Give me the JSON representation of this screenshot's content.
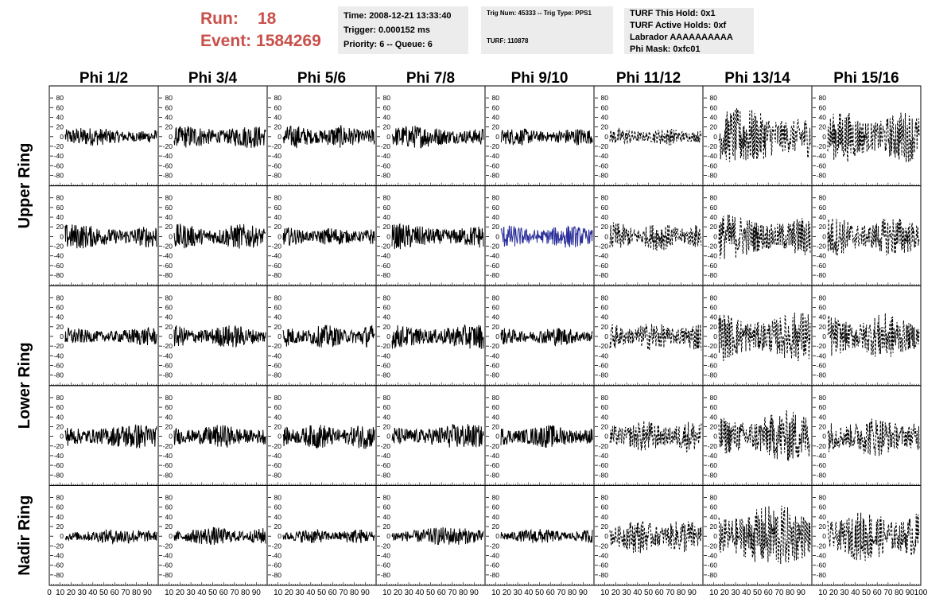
{
  "header": {
    "run_label": "Run:",
    "run_value": "18",
    "event_label": "Event:",
    "event_value": "1584269"
  },
  "info_time": {
    "time": "Time: 2008-12-21 13:33:40",
    "trigger": "Trigger: 0.000152 ms",
    "priority": "Priority: 6 -- Queue: 6"
  },
  "info_trig": {
    "trig": "Trig Num: 45333 -- Trig Type: PPS1",
    "turf": "TURF: 110878"
  },
  "info_turf": {
    "hold": "TURF This Hold: 0x1",
    "active": "TURF Active Holds: 0xf",
    "labrador": "Labrador AAAAAAAAAA",
    "phimask": "Phi Mask: 0xfc01"
  },
  "chart_data": {
    "type": "line",
    "columns": [
      "Phi 1/2",
      "Phi 3/4",
      "Phi 5/6",
      "Phi 7/8",
      "Phi 9/10",
      "Phi 11/12",
      "Phi 13/14",
      "Phi 15/16"
    ],
    "row_groups": [
      {
        "label": "Upper Ring",
        "rows": [
          0,
          1
        ]
      },
      {
        "label": "Lower Ring",
        "rows": [
          2,
          3
        ]
      },
      {
        "label": "Nadir Ring",
        "rows": [
          4
        ]
      }
    ],
    "xlim": [
      0,
      100
    ],
    "ylim": [
      -95,
      95
    ],
    "y_ticks": [
      -80,
      -60,
      -40,
      -20,
      0,
      20,
      40,
      60,
      80
    ],
    "x_ticks": [
      0,
      10,
      20,
      30,
      40,
      50,
      60,
      70,
      80,
      90,
      100
    ],
    "amplitudes": [
      [
        16,
        20,
        20,
        20,
        15,
        15,
        50,
        45
      ],
      [
        22,
        22,
        16,
        22,
        20,
        25,
        40,
        35
      ],
      [
        16,
        20,
        20,
        22,
        16,
        25,
        45,
        40
      ],
      [
        22,
        20,
        22,
        22,
        20,
        28,
        45,
        35
      ],
      [
        13,
        16,
        13,
        16,
        13,
        30,
        55,
        45
      ]
    ],
    "dashed_columns": [
      5,
      6,
      7
    ],
    "triggered_cell": [
      1,
      4
    ],
    "colors": {
      "trace": "#000000",
      "triggered_trace": "#2b2f9a",
      "run_text": "#c9504a",
      "info_bg": "#ececec"
    }
  }
}
